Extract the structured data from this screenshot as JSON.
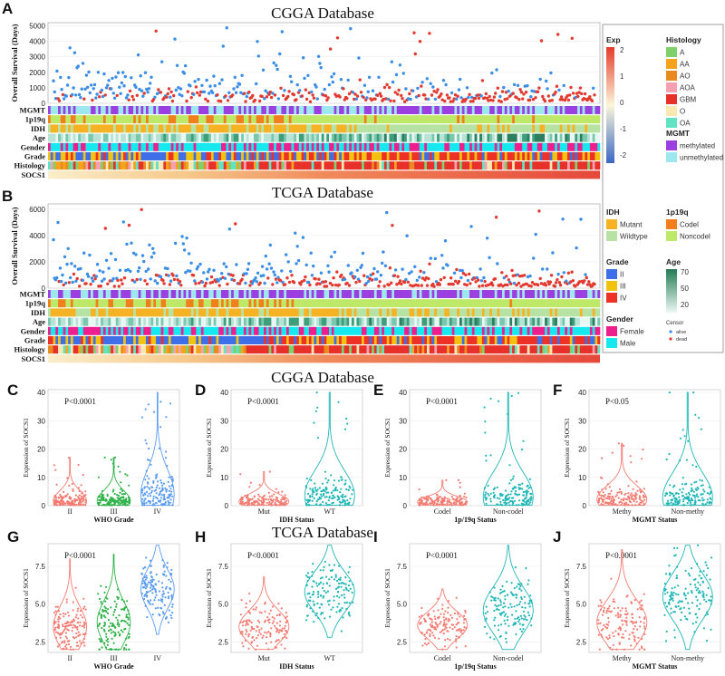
{
  "titles": {
    "cgga_top": "CGGA Database",
    "tcga_top": "TCGA Database",
    "cgga_violin": "CGGA Database",
    "tcga_violin": "TCGA Database"
  },
  "panel_letters": [
    "A",
    "B",
    "C",
    "D",
    "E",
    "F",
    "G",
    "H",
    "I",
    "J"
  ],
  "track_labels": [
    "MGMT",
    "1p19q",
    "IDH",
    "Age",
    "Gender",
    "Grade",
    "Histology",
    "SOCS1"
  ],
  "colors": {
    "alive": "#3a8ee6",
    "dead": "#e23a30",
    "mgmt_methylated": "#9b3fe0",
    "mgmt_unmethylated": "#9de8ee",
    "idh_mutant": "#f5b324",
    "idh_wildtype": "#b6e3a3",
    "p19q_codel": "#f07f1c",
    "p19q_noncodel": "#bde868",
    "grade_II": "#3f6fe8",
    "grade_III": "#f1c20f",
    "grade_IV": "#ee3127",
    "gender_female": "#ec1f8d",
    "gender_male": "#16e8ef",
    "hist_A": "#7fcf6b",
    "hist_AA": "#f6a21d",
    "hist_AO": "#e88a1e",
    "hist_AOA": "#f4a0b0",
    "hist_GBM": "#e8302a",
    "hist_O": "#fbe7b0",
    "hist_OA": "#5fe3c3",
    "v_red": "#f47c72",
    "v_green": "#2fb24a",
    "v_blue": "#5b9cf0",
    "v_teal": "#1fb6b6",
    "exp_high": "#e53b2b",
    "exp_low": "#3a68c4"
  },
  "chart_data": [
    {
      "id": "A",
      "type": "scatter",
      "title": "CGGA Database",
      "ylabel": "Overall Survival (Days)",
      "yticks": [
        0,
        1000,
        2000,
        3000,
        4000,
        5000
      ],
      "ylim": [
        0,
        5200
      ],
      "legend": {
        "title": "Censor",
        "entries": [
          "alive",
          "dead"
        ]
      }
    },
    {
      "id": "B",
      "type": "scatter",
      "title": "TCGA Database",
      "ylabel": "Overall Survival (Days)",
      "yticks": [
        0,
        2000,
        4000,
        6000
      ],
      "ylim": [
        0,
        6400
      ]
    },
    {
      "id": "legend",
      "type": "table",
      "exp": {
        "title": "Exp",
        "ticks": [
          "2",
          "1",
          "0",
          "-1",
          "-2"
        ]
      },
      "histology": {
        "title": "Histology",
        "entries": [
          "A",
          "AA",
          "AO",
          "AOA",
          "GBM",
          "O",
          "OA"
        ]
      },
      "mgmt": {
        "title": "MGMT",
        "entries": [
          "methylated",
          "unmethylated"
        ]
      },
      "idh": {
        "title": "IDH",
        "entries": [
          "Mutant",
          "Wildtype"
        ]
      },
      "p19q": {
        "title": "1p19q",
        "entries": [
          "Codel",
          "Noncodel"
        ]
      },
      "grade": {
        "title": "Grade",
        "entries": [
          "II",
          "III",
          "IV"
        ]
      },
      "age": {
        "title": "Age",
        "ticks": [
          "70",
          "50",
          "20"
        ]
      },
      "gender": {
        "title": "Gender",
        "entries": [
          "Female",
          "Male"
        ]
      },
      "censor": {
        "title": "Censor",
        "entries": [
          "alive",
          "dead"
        ]
      }
    },
    {
      "id": "C",
      "type": "scatter",
      "pvalue": "P<0.0001",
      "xlabel": "WHO Grade",
      "ylabel": "Expression of SOCS1",
      "categories": [
        "II",
        "III",
        "IV"
      ],
      "yticks": [
        0,
        10,
        20,
        30,
        40
      ],
      "ylim": [
        0,
        41
      ],
      "medians": [
        1.6,
        1.6,
        4.0
      ],
      "maxes": [
        17,
        17,
        40
      ],
      "colors": [
        "v_red",
        "v_green",
        "v_blue"
      ]
    },
    {
      "id": "D",
      "type": "scatter",
      "pvalue": "P<0.0001",
      "xlabel": "IDH Status",
      "ylabel": "Expression of SOCS1",
      "categories": [
        "Mut",
        "WT"
      ],
      "yticks": [
        0,
        10,
        20,
        30,
        40
      ],
      "ylim": [
        0,
        41
      ],
      "medians": [
        1.5,
        3.5
      ],
      "maxes": [
        12,
        40
      ],
      "colors": [
        "v_red",
        "v_teal"
      ]
    },
    {
      "id": "E",
      "type": "scatter",
      "pvalue": "P<0.0001",
      "xlabel": "1p/19q Status",
      "ylabel": "Expression of SOCS1",
      "categories": [
        "Codel",
        "Non-codel"
      ],
      "yticks": [
        0,
        10,
        20,
        30,
        40
      ],
      "ylim": [
        0,
        41
      ],
      "medians": [
        1.3,
        3.0
      ],
      "maxes": [
        9,
        40
      ],
      "colors": [
        "v_red",
        "v_teal"
      ]
    },
    {
      "id": "F",
      "type": "scatter",
      "pvalue": "P<0.05",
      "xlabel": "MGMT Status",
      "ylabel": "Expression of SOCS1",
      "categories": [
        "Methy",
        "Non-methy"
      ],
      "yticks": [
        0,
        10,
        20,
        30,
        40
      ],
      "ylim": [
        0,
        41
      ],
      "medians": [
        2.2,
        2.8
      ],
      "maxes": [
        22,
        40
      ],
      "colors": [
        "v_red",
        "v_teal"
      ]
    },
    {
      "id": "G",
      "type": "scatter",
      "pvalue": "P<0.0001",
      "xlabel": "WHO Grade",
      "ylabel": "Expression of SOCS1",
      "categories": [
        "II",
        "III",
        "IV"
      ],
      "yticks": [
        2.5,
        5.0,
        7.5
      ],
      "ylim": [
        1.8,
        9.0
      ],
      "medians": [
        3.5,
        3.8,
        6.0
      ],
      "mins": [
        2.0,
        2.0,
        3.0
      ],
      "maxes": [
        8.0,
        8.3,
        8.9
      ],
      "colors": [
        "v_red",
        "v_green",
        "v_blue"
      ]
    },
    {
      "id": "H",
      "type": "scatter",
      "pvalue": "P<0.0001",
      "xlabel": "IDH Status",
      "ylabel": "Expression of SOCS1",
      "categories": [
        "Mut",
        "WT"
      ],
      "yticks": [
        2.5,
        5.0,
        7.5
      ],
      "ylim": [
        1.8,
        9.0
      ],
      "medians": [
        3.5,
        5.8
      ],
      "mins": [
        2.0,
        2.8
      ],
      "maxes": [
        6.8,
        8.9
      ],
      "colors": [
        "v_red",
        "v_teal"
      ]
    },
    {
      "id": "I",
      "type": "scatter",
      "pvalue": "P<0.0001",
      "xlabel": "1p/19q Status",
      "ylabel": "Expression of SOCS1",
      "categories": [
        "Codel",
        "Non-codel"
      ],
      "yticks": [
        2.5,
        5.0,
        7.5
      ],
      "ylim": [
        1.8,
        9.0
      ],
      "medians": [
        3.6,
        4.6
      ],
      "mins": [
        2.0,
        2.0
      ],
      "maxes": [
        6.0,
        8.9
      ],
      "colors": [
        "v_red",
        "v_teal"
      ]
    },
    {
      "id": "J",
      "type": "scatter",
      "pvalue": "P<0.0001",
      "xlabel": "MGMT Status",
      "ylabel": "Expression of SOCS1",
      "categories": [
        "Methy",
        "Non-methy"
      ],
      "yticks": [
        2.5,
        5.0,
        7.5
      ],
      "ylim": [
        1.8,
        9.0
      ],
      "medians": [
        3.8,
        5.5
      ],
      "mins": [
        2.0,
        2.0
      ],
      "maxes": [
        8.6,
        8.9
      ],
      "colors": [
        "v_red",
        "v_teal"
      ]
    }
  ]
}
